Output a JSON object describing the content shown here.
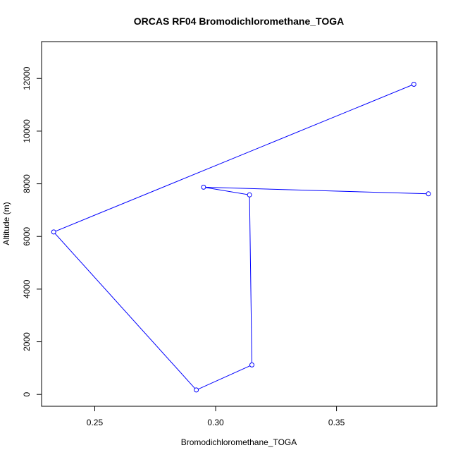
{
  "chart_data": {
    "type": "line",
    "title": "ORCAS RF04 Bromodichloromethane_TOGA",
    "xlabel": "Bromodichloromethane_TOGA",
    "ylabel": "Altitude (m)",
    "x_ticks": [
      "0.25",
      "0.30",
      "0.35"
    ],
    "y_ticks": [
      "0",
      "2000",
      "4000",
      "6000",
      "8000",
      "10000",
      "12000"
    ],
    "xlim": [
      0.228,
      0.3915
    ],
    "ylim": [
      -450,
      13400
    ],
    "grid": false,
    "legend": "none",
    "series": [
      {
        "color": "#0000ff",
        "marker": "open-circle",
        "x": [
          0.382,
          0.233,
          0.292,
          0.315,
          0.314,
          0.295,
          0.388
        ],
        "y": [
          11780,
          6170,
          170,
          1120,
          7580,
          7870,
          7620
        ]
      }
    ]
  }
}
